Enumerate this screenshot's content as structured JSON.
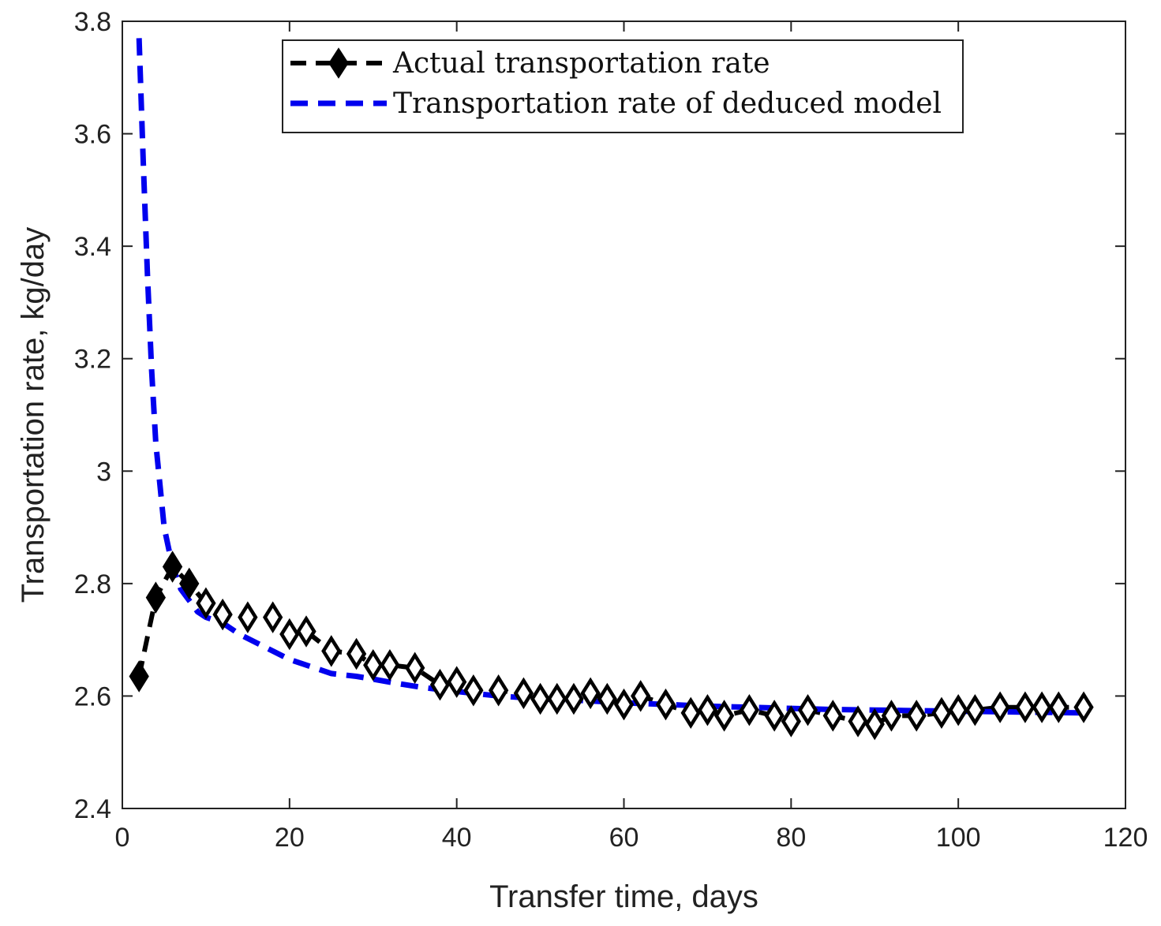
{
  "chart_data": {
    "type": "line",
    "title": "",
    "xlabel": "Transfer time, days",
    "ylabel": "Transportation rate, kg/day",
    "xlim": [
      0,
      120
    ],
    "ylim": [
      2.4,
      3.8
    ],
    "xticks": [
      0,
      20,
      40,
      60,
      80,
      100,
      120
    ],
    "yticks": [
      2.4,
      2.6,
      2.8,
      3,
      3.2,
      3.4,
      3.6,
      3.8
    ],
    "xtick_labels": [
      "0",
      "20",
      "40",
      "60",
      "80",
      "100",
      "120"
    ],
    "ytick_labels": [
      "2.4",
      "2.6",
      "2.8",
      "3",
      "3.2",
      "3.4",
      "3.6",
      "3.8"
    ],
    "grid": false,
    "legend_position": "top-center",
    "series": [
      {
        "name": "Actual transportation rate",
        "color": "#000000",
        "style": "dashed",
        "marker": "diamond",
        "x": [
          2,
          4,
          6,
          8,
          10,
          12,
          15,
          18,
          20,
          22,
          25,
          28,
          30,
          32,
          35,
          38,
          40,
          42,
          45,
          48,
          50,
          52,
          54,
          56,
          58,
          60,
          62,
          65,
          68,
          70,
          72,
          75,
          78,
          80,
          82,
          85,
          88,
          90,
          92,
          95,
          98,
          100,
          102,
          105,
          108,
          110,
          112,
          115
        ],
        "y": [
          2.635,
          2.775,
          2.83,
          2.8,
          2.765,
          2.745,
          2.74,
          2.74,
          2.71,
          2.715,
          2.68,
          2.675,
          2.655,
          2.655,
          2.65,
          2.62,
          2.625,
          2.61,
          2.61,
          2.605,
          2.595,
          2.595,
          2.595,
          2.605,
          2.595,
          2.585,
          2.6,
          2.585,
          2.57,
          2.575,
          2.565,
          2.575,
          2.565,
          2.555,
          2.575,
          2.565,
          2.555,
          2.55,
          2.565,
          2.565,
          2.57,
          2.575,
          2.575,
          2.58,
          2.58,
          2.58,
          2.58,
          2.58
        ]
      },
      {
        "name": "Transportation rate of deduced model",
        "color": "#0000ee",
        "style": "dashed",
        "marker": "none",
        "x": [
          2,
          2.5,
          3,
          3.5,
          4,
          5,
          6,
          7,
          8,
          9,
          10,
          11,
          12,
          14,
          16,
          18,
          20,
          22,
          25,
          28,
          30,
          33,
          36,
          40,
          45,
          50,
          55,
          60,
          65,
          70,
          75,
          80,
          85,
          90,
          95,
          100,
          105,
          110,
          115
        ],
        "y": [
          3.77,
          3.55,
          3.35,
          3.18,
          3.05,
          2.9,
          2.83,
          2.79,
          2.77,
          2.75,
          2.74,
          2.735,
          2.73,
          2.71,
          2.695,
          2.68,
          2.665,
          2.655,
          2.64,
          2.635,
          2.63,
          2.622,
          2.615,
          2.608,
          2.6,
          2.595,
          2.592,
          2.588,
          2.585,
          2.582,
          2.58,
          2.578,
          2.576,
          2.575,
          2.574,
          2.573,
          2.572,
          2.571,
          2.57
        ]
      }
    ]
  }
}
